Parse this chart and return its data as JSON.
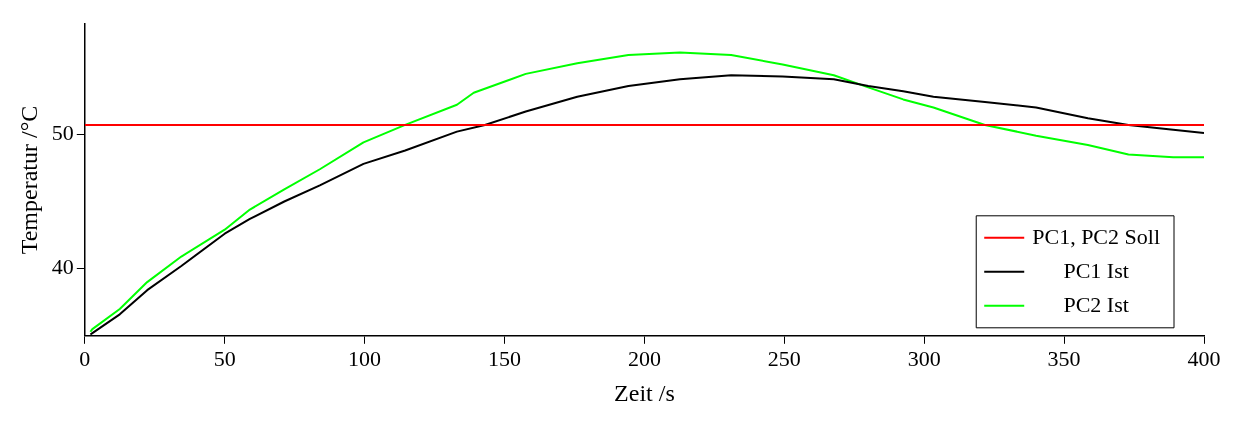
{
  "chart_data": {
    "type": "line",
    "xlabel": "Zeit /s",
    "ylabel": "Temperatur /°C",
    "xlim": [
      0,
      400
    ],
    "xticks": [
      0,
      50,
      100,
      150,
      200,
      250,
      300,
      350,
      400
    ],
    "ylim": [
      35,
      58.2
    ],
    "yticks": [
      40,
      50
    ],
    "grid": false,
    "legend": "bottom right",
    "marker": "none",
    "line_style": "solid",
    "series": [
      {
        "name": "PC1, PC2 Soll",
        "color": "#ff0000",
        "x": [
          0,
          400
        ],
        "values": [
          50.7,
          50.7
        ]
      },
      {
        "name": "PC1 Ist",
        "color": "#000000",
        "x": [
          2,
          2.7,
          12.5,
          22.3,
          34.5,
          50,
          59,
          71.3,
          84,
          99.6,
          114.5,
          133,
          143,
          157.6,
          176,
          194.3,
          212.7,
          231,
          249.4,
          267.7,
          280,
          292.5,
          303.3,
          321.7,
          340,
          358.5,
          373,
          389,
          400
        ],
        "values": [
          35.1,
          35.2,
          36.6,
          38.4,
          40.2,
          42.6,
          43.7,
          45.0,
          46.2,
          47.8,
          48.8,
          50.2,
          50.7,
          51.7,
          52.8,
          53.6,
          54.1,
          54.4,
          54.3,
          54.1,
          53.6,
          53.2,
          52.8,
          52.4,
          52.0,
          51.2,
          50.7,
          50.35,
          50.1
        ]
      },
      {
        "name": "PC2 Ist",
        "color": "#00ff00",
        "x": [
          2,
          2.7,
          12.5,
          22.3,
          34.5,
          50,
          59,
          71.3,
          84,
          99.6,
          114.5,
          133,
          139,
          157.6,
          176,
          194.3,
          212.7,
          231,
          249.4,
          267.7,
          280,
          292.5,
          303.3,
          321.7,
          340,
          358.5,
          373,
          389,
          400
        ],
        "values": [
          35.3,
          35.5,
          37.0,
          39.0,
          40.9,
          42.9,
          44.4,
          45.9,
          47.4,
          49.4,
          50.7,
          52.2,
          53.1,
          54.5,
          55.3,
          55.9,
          56.1,
          55.9,
          55.2,
          54.4,
          53.5,
          52.6,
          52.0,
          50.7,
          49.9,
          49.2,
          48.5,
          48.3,
          48.3
        ]
      }
    ]
  }
}
